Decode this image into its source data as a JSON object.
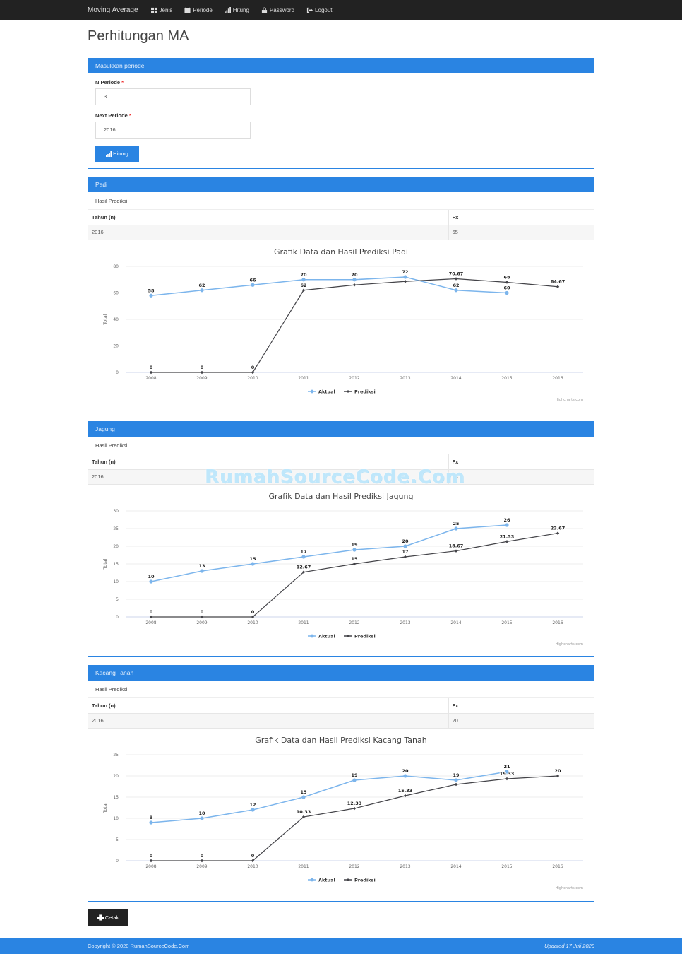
{
  "navbar": {
    "brand": "Moving Average",
    "items": [
      {
        "label": "Jenis",
        "icon": "table-icon"
      },
      {
        "label": "Periode",
        "icon": "calendar-icon"
      },
      {
        "label": "Hitung",
        "icon": "signal-icon"
      },
      {
        "label": "Password",
        "icon": "lock-icon"
      },
      {
        "label": "Logout",
        "icon": "logout-icon"
      }
    ]
  },
  "page": {
    "title": "Perhitungan MA"
  },
  "form": {
    "panel_title": "Masukkan periode",
    "n_periode_label": "N Periode",
    "n_periode_value": "3",
    "next_periode_label": "Next Periode",
    "next_periode_value": "2016",
    "required_mark": "*",
    "submit_label": "Hitung"
  },
  "results": [
    {
      "name": "Padi",
      "hasil_label": "Hasil Prediksi:",
      "col_tahun": "Tahun (n)",
      "col_fx": "Fx",
      "tahun": "2016",
      "fx": "65"
    },
    {
      "name": "Jagung",
      "hasil_label": "Hasil Prediksi:",
      "col_tahun": "Tahun (n)",
      "col_fx": "Fx",
      "tahun": "2016",
      "fx": "24"
    },
    {
      "name": "Kacang Tanah",
      "hasil_label": "Hasil Prediksi:",
      "col_tahun": "Tahun (n)",
      "col_fx": "Fx",
      "tahun": "2016",
      "fx": "20"
    }
  ],
  "colors": {
    "primary": "#2a84e2",
    "aktual": "#7cb5ec",
    "prediksi": "#434348",
    "navbar": "#222222"
  },
  "chart_data": [
    {
      "type": "line",
      "title": "Grafik Data dan Hasil Prediksi Padi",
      "xlabel": "",
      "ylabel": "Total",
      "categories": [
        "2008",
        "2009",
        "2010",
        "2011",
        "2012",
        "2013",
        "2014",
        "2015",
        "2016"
      ],
      "ylim": [
        0,
        80
      ],
      "yticks": [
        0,
        20,
        40,
        60,
        80
      ],
      "grid": true,
      "legend_position": "bottom",
      "series": [
        {
          "name": "Aktual",
          "values": [
            58,
            62,
            66,
            70,
            70,
            72,
            62,
            60,
            null
          ],
          "labels": [
            "58",
            "62",
            "66",
            "70",
            "70",
            "72",
            "62",
            "60",
            ""
          ]
        },
        {
          "name": "Prediksi",
          "values": [
            0,
            0,
            0,
            62,
            66,
            68.67,
            70.67,
            68,
            64.67
          ],
          "labels": [
            "0",
            "0",
            "0",
            "62",
            "",
            "",
            "70.67",
            "68",
            "64.67"
          ]
        }
      ],
      "credit": "Highcharts.com"
    },
    {
      "type": "line",
      "title": "Grafik Data dan Hasil Prediksi Jagung",
      "xlabel": "",
      "ylabel": "Total",
      "categories": [
        "2008",
        "2009",
        "2010",
        "2011",
        "2012",
        "2013",
        "2014",
        "2015",
        "2016"
      ],
      "ylim": [
        0,
        30
      ],
      "yticks": [
        0,
        5,
        10,
        15,
        20,
        25,
        30
      ],
      "grid": true,
      "legend_position": "bottom",
      "series": [
        {
          "name": "Aktual",
          "values": [
            10,
            13,
            15,
            17,
            19,
            20,
            25,
            26,
            null
          ],
          "labels": [
            "10",
            "13",
            "15",
            "17",
            "19",
            "20",
            "25",
            "26",
            ""
          ]
        },
        {
          "name": "Prediksi",
          "values": [
            0,
            0,
            0,
            12.67,
            15,
            17,
            18.67,
            21.33,
            23.67
          ],
          "labels": [
            "0",
            "0",
            "0",
            "12.67",
            "15",
            "17",
            "18.67",
            "21.33",
            "23.67"
          ]
        }
      ],
      "credit": "Highcharts.com"
    },
    {
      "type": "line",
      "title": "Grafik Data dan Hasil Prediksi Kacang Tanah",
      "xlabel": "",
      "ylabel": "Total",
      "categories": [
        "2008",
        "2009",
        "2010",
        "2011",
        "2012",
        "2013",
        "2014",
        "2015",
        "2016"
      ],
      "ylim": [
        0,
        25
      ],
      "yticks": [
        0,
        5,
        10,
        15,
        20,
        25
      ],
      "grid": true,
      "legend_position": "bottom",
      "series": [
        {
          "name": "Aktual",
          "values": [
            9,
            10,
            12,
            15,
            19,
            20,
            19,
            21,
            null
          ],
          "labels": [
            "9",
            "10",
            "12",
            "15",
            "19",
            "20",
            "19",
            "21",
            ""
          ]
        },
        {
          "name": "Prediksi",
          "values": [
            0,
            0,
            0,
            10.33,
            12.33,
            15.33,
            18,
            19.33,
            20
          ],
          "labels": [
            "0",
            "0",
            "0",
            "10.33",
            "12.33",
            "15.33",
            "",
            "19.33",
            "20"
          ]
        }
      ],
      "credit": "Highcharts.com"
    }
  ],
  "actions": {
    "print_label": "Cetak"
  },
  "footer": {
    "copyright": "Copyright © 2020 RumahSourceCode.Com",
    "updated": "Updated 17 Juli 2020"
  },
  "watermark": "RumahSourceCode.Com"
}
